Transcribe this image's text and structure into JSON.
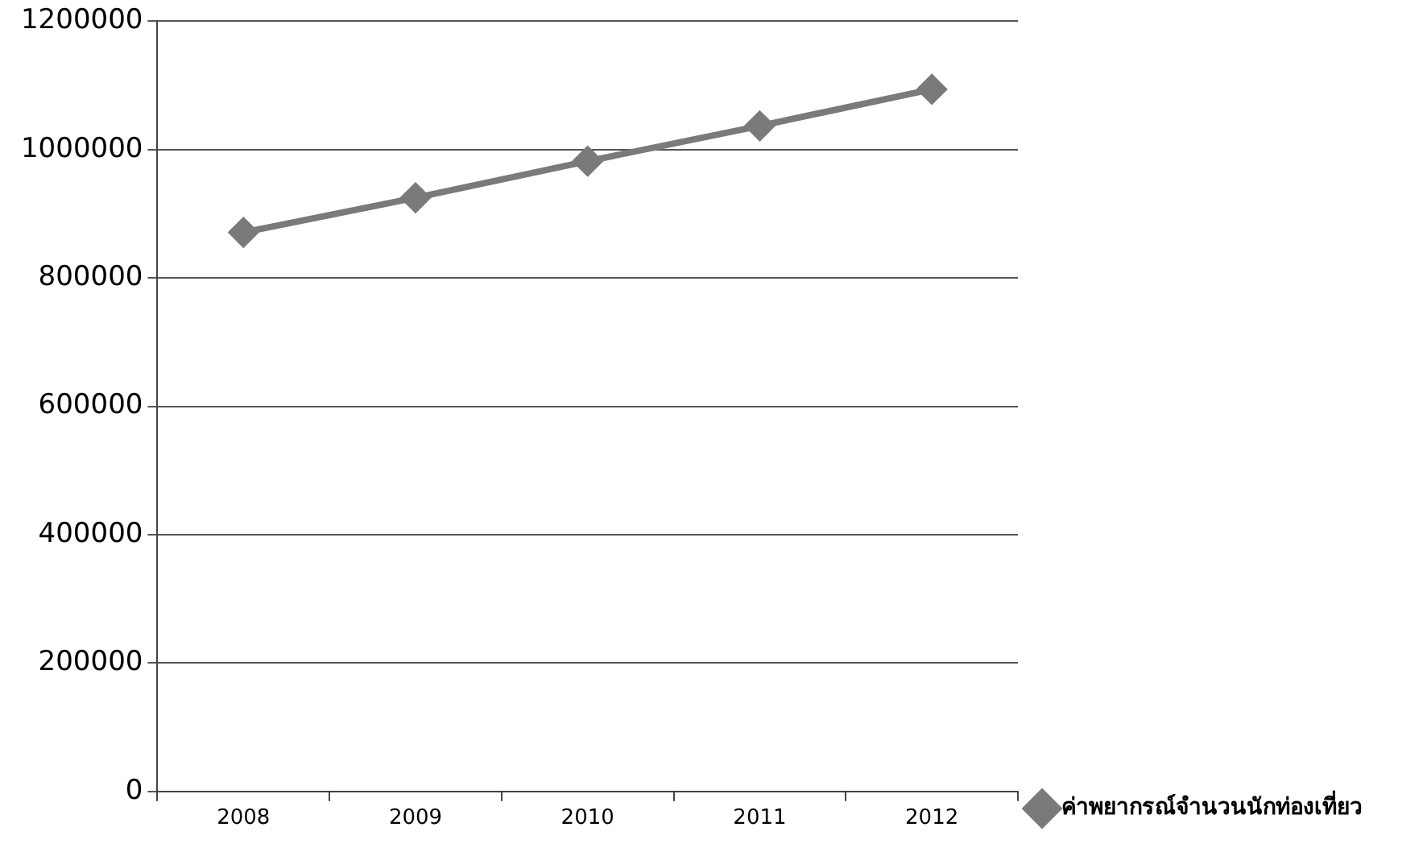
{
  "chart_data": {
    "type": "line",
    "categories": [
      "2008",
      "2009",
      "2010",
      "2011",
      "2012"
    ],
    "series": [
      {
        "name": "ค่าพยากรณ์จำนวนนักท่องเที่ยว",
        "color": "#7a7a7a",
        "values": [
          871000,
          925000,
          982000,
          1037000,
          1094000
        ]
      }
    ],
    "ylim": [
      0,
      1200000
    ],
    "yticks": [
      0,
      200000,
      400000,
      600000,
      800000,
      1000000,
      1200000
    ],
    "grid": "y",
    "legend": "right",
    "marker": "diamond",
    "line_style": "solid"
  }
}
